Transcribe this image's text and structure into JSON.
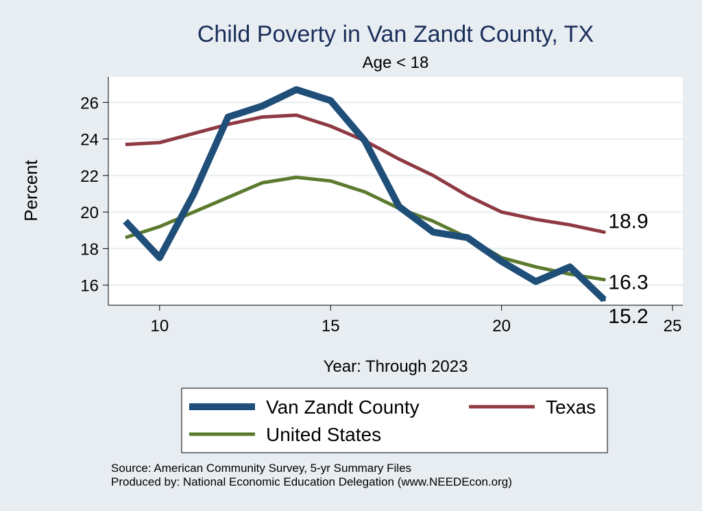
{
  "chart_data": {
    "type": "line",
    "title": "Child Poverty in Van Zandt County, TX",
    "subtitle": "Age < 18",
    "xlabel": "Year: Through 2023",
    "ylabel": "Percent",
    "xlim": [
      8.5,
      25.3
    ],
    "ylim": [
      14.9,
      27.4
    ],
    "x_ticks": [
      10,
      15,
      20,
      25
    ],
    "y_ticks": [
      16,
      18,
      20,
      22,
      24,
      26
    ],
    "grid": true,
    "legend_position": "bottom",
    "series": [
      {
        "name": "Van Zandt County",
        "color": "#1f4e79",
        "x": [
          9,
          10,
          11,
          12,
          13,
          14,
          15,
          16,
          17,
          18,
          19,
          20,
          21,
          22,
          23
        ],
        "values": [
          19.5,
          17.5,
          21.0,
          25.2,
          25.8,
          26.7,
          26.1,
          23.9,
          20.3,
          18.9,
          18.6,
          17.3,
          16.2,
          17.0,
          15.2
        ],
        "end_label": "15.2"
      },
      {
        "name": "Texas",
        "color": "#8f3a43",
        "x": [
          9,
          10,
          11,
          12,
          13,
          14,
          15,
          16,
          17,
          18,
          19,
          20,
          21,
          22,
          23
        ],
        "values": [
          23.7,
          23.8,
          24.3,
          24.8,
          25.2,
          25.3,
          24.7,
          23.9,
          22.9,
          22.0,
          20.9,
          20.0,
          19.6,
          19.3,
          18.9
        ],
        "end_label": "18.9"
      },
      {
        "name": "United States",
        "color": "#5b7a2e",
        "x": [
          9,
          10,
          11,
          12,
          13,
          14,
          15,
          16,
          17,
          18,
          19,
          20,
          21,
          22,
          23
        ],
        "values": [
          18.6,
          19.2,
          20.0,
          20.8,
          21.6,
          21.9,
          21.7,
          21.1,
          20.2,
          19.5,
          18.6,
          17.5,
          17.0,
          16.6,
          16.3
        ],
        "end_label": "16.3"
      }
    ],
    "notes": [
      "Source: American Community Survey, 5-yr Summary Files",
      "Produced by: National Economic Education Delegation (www.NEEDEcon.org)"
    ]
  }
}
